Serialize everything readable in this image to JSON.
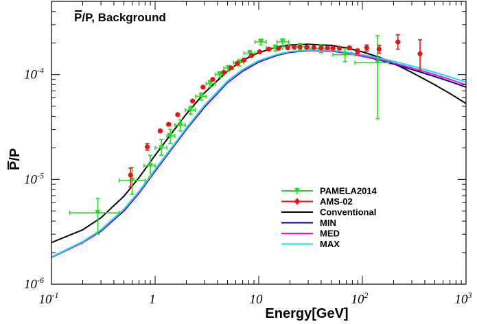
{
  "chart_data": {
    "type": "scatter",
    "title": "P/P, Background",
    "title_bar_char": "P",
    "xlabel": "Energy[GeV]",
    "ylabel": "P/P",
    "ylabel_bar_char": "P",
    "xscale": "log",
    "yscale": "log",
    "xlim": [
      0.1,
      1000
    ],
    "ylim": [
      1e-06,
      0.0005
    ],
    "x_major_ticks": [
      {
        "value": 0.1,
        "base": "10",
        "exp": "-1"
      },
      {
        "value": 1,
        "base": "1",
        "exp": ""
      },
      {
        "value": 10,
        "base": "10",
        "exp": ""
      },
      {
        "value": 100,
        "base": "10",
        "exp": "2"
      },
      {
        "value": 1000,
        "base": "10",
        "exp": "3"
      }
    ],
    "y_major_ticks": [
      {
        "value": 1e-06,
        "base": "10",
        "exp": "-6"
      },
      {
        "value": 1e-05,
        "base": "10",
        "exp": "-5"
      },
      {
        "value": 0.0001,
        "base": "10",
        "exp": "-4"
      }
    ],
    "grid": false,
    "legend_position": "lower-right",
    "series": [
      {
        "name": "PAMELA2014",
        "kind": "points",
        "marker": "triangle-down",
        "color": "#22dd22",
        "points": [
          {
            "x": 0.28,
            "y": 4.8e-06,
            "xerr": [
              0.15,
              0.45
            ],
            "yerr": [
              3e-06,
              6.6e-06
            ]
          },
          {
            "x": 0.6,
            "y": 9.8e-06,
            "xerr": [
              0.45,
              0.8
            ],
            "yerr": [
              7.2e-06,
              1.3e-05
            ]
          },
          {
            "x": 0.9,
            "y": 1.35e-05,
            "xerr": [
              0.78,
              1.0
            ],
            "yerr": [
              1.05e-05,
              1.7e-05
            ]
          },
          {
            "x": 1.15,
            "y": 2e-05,
            "xerr": [
              1.0,
              1.3
            ],
            "yerr": [
              1.7e-05,
              2.4e-05
            ]
          },
          {
            "x": 1.4,
            "y": 2.6e-05,
            "xerr": [
              1.3,
              1.55
            ],
            "yerr": [
              2.2e-05,
              3e-05
            ]
          },
          {
            "x": 1.75,
            "y": 3.3e-05,
            "xerr": [
              1.55,
              1.95
            ],
            "yerr": [
              2.9e-05,
              3.7e-05
            ]
          },
          {
            "x": 2.2,
            "y": 4.6e-05,
            "xerr": [
              1.95,
              2.45
            ],
            "yerr": [
              4.2e-05,
              5e-05
            ]
          },
          {
            "x": 2.8,
            "y": 6.2e-05,
            "xerr": [
              2.45,
              3.1
            ],
            "yerr": [
              5.7e-05,
              6.7e-05
            ]
          },
          {
            "x": 3.4,
            "y": 8.2e-05,
            "xerr": [
              3.1,
              3.8
            ],
            "yerr": [
              7.6e-05,
              8.8e-05
            ]
          },
          {
            "x": 4.2,
            "y": 0.0001,
            "xerr": [
              3.8,
              4.6
            ],
            "yerr": [
              9.4e-05,
              0.000107
            ]
          },
          {
            "x": 5.1,
            "y": 0.000115,
            "xerr": [
              4.6,
              5.7
            ],
            "yerr": [
              0.000108,
              0.000122
            ]
          },
          {
            "x": 6.5,
            "y": 0.00013,
            "xerr": [
              5.7,
              7.2
            ],
            "yerr": [
              0.000121,
              0.000139
            ]
          },
          {
            "x": 8.2,
            "y": 0.00016,
            "xerr": [
              7.2,
              9.2
            ],
            "yerr": [
              0.00015,
              0.00017
            ]
          },
          {
            "x": 10.5,
            "y": 0.000205,
            "xerr": [
              9.2,
              11.8
            ],
            "yerr": [
              0.000192,
              0.000218
            ]
          },
          {
            "x": 14.5,
            "y": 0.00018,
            "xerr": [
              11.8,
              17
            ],
            "yerr": [
              0.000168,
              0.000192
            ]
          },
          {
            "x": 17,
            "y": 0.000205,
            "xerr": [
              15,
              19.5
            ],
            "yerr": [
              0.00019,
              0.00022
            ]
          },
          {
            "x": 25,
            "y": 0.000185,
            "xerr": [
              19.5,
              31
            ],
            "yerr": [
              0.000172,
              0.000198
            ]
          },
          {
            "x": 40,
            "y": 0.000178,
            "xerr": [
              31,
              52
            ],
            "yerr": [
              0.000162,
              0.000194
            ]
          },
          {
            "x": 68,
            "y": 0.000155,
            "xerr": [
              52,
              85
            ],
            "yerr": [
              0.000133,
              0.000177
            ]
          },
          {
            "x": 140,
            "y": 0.00013,
            "xerr": [
              85,
              180
            ],
            "yerr": [
              3.8e-05,
              0.000235
            ]
          }
        ]
      },
      {
        "name": "AMS-02",
        "kind": "points",
        "marker": "circle",
        "color": "#ee1111",
        "points": [
          {
            "x": 0.58,
            "y": 1.1e-05,
            "xerr": [
              0.55,
              0.61
            ],
            "yerr": [
              8.5e-06,
              1.28e-05
            ]
          },
          {
            "x": 0.84,
            "y": 2.05e-05,
            "xerr": [
              0.8,
              0.88
            ],
            "yerr": [
              1.9e-05,
              2.2e-05
            ]
          },
          {
            "x": 1.12,
            "y": 2.9e-05,
            "xerr": [
              1.08,
              1.16
            ],
            "yerr": [
              2.8e-05,
              3e-05
            ]
          },
          {
            "x": 1.35,
            "y": 3.35e-05,
            "xerr": [
              1.31,
              1.39
            ],
            "yerr": [
              3.25e-05,
              3.45e-05
            ]
          },
          {
            "x": 1.65,
            "y": 4.15e-05,
            "xerr": [
              1.6,
              1.7
            ],
            "yerr": [
              4.05e-05,
              4.25e-05
            ]
          },
          {
            "x": 2.3,
            "y": 5.6e-05,
            "xerr": [
              2.2,
              2.4
            ],
            "yerr": [
              5.5e-05,
              5.7e-05
            ]
          },
          {
            "x": 2.9,
            "y": 7.6e-05,
            "xerr": [
              2.8,
              3.0
            ],
            "yerr": [
              7.5e-05,
              7.7e-05
            ]
          },
          {
            "x": 3.6,
            "y": 9e-05,
            "xerr": [
              3.5,
              3.7
            ],
            "yerr": [
              8.9e-05,
              9.1e-05
            ]
          },
          {
            "x": 4.6,
            "y": 0.000105,
            "xerr": [
              4.45,
              4.75
            ],
            "yerr": [
              0.000104,
              0.000106
            ]
          },
          {
            "x": 5.4,
            "y": 0.000116,
            "xerr": [
              5.25,
              5.55
            ],
            "yerr": [
              0.000115,
              0.000117
            ]
          },
          {
            "x": 6.2,
            "y": 0.000128,
            "xerr": [
              6.05,
              6.35
            ],
            "yerr": [
              0.000127,
              0.000129
            ]
          },
          {
            "x": 7.2,
            "y": 0.000138,
            "xerr": [
              7.0,
              7.4
            ],
            "yerr": [
              0.000137,
              0.000139
            ]
          },
          {
            "x": 8.5,
            "y": 0.000152,
            "xerr": [
              8.3,
              8.7
            ],
            "yerr": [
              0.000151,
              0.000153
            ]
          },
          {
            "x": 10.2,
            "y": 0.000165,
            "xerr": [
              10.0,
              10.4
            ],
            "yerr": [
              0.000163,
              0.000167
            ]
          },
          {
            "x": 12.5,
            "y": 0.000175,
            "xerr": [
              12.2,
              12.8
            ],
            "yerr": [
              0.000173,
              0.000177
            ]
          },
          {
            "x": 15.5,
            "y": 0.000178,
            "xerr": [
              15.1,
              15.9
            ],
            "yerr": [
              0.000176,
              0.00018
            ]
          },
          {
            "x": 19,
            "y": 0.00018,
            "xerr": [
              18.5,
              19.5
            ],
            "yerr": [
              0.000178,
              0.000182
            ]
          },
          {
            "x": 22,
            "y": 0.000182,
            "xerr": [
              21.5,
              22.5
            ],
            "yerr": [
              0.00018,
              0.000184
            ]
          },
          {
            "x": 25,
            "y": 0.000183,
            "xerr": [
              24.4,
              25.6
            ],
            "yerr": [
              0.000181,
              0.000185
            ]
          },
          {
            "x": 29,
            "y": 0.000182,
            "xerr": [
              28.3,
              29.7
            ],
            "yerr": [
              0.00018,
              0.000184
            ]
          },
          {
            "x": 34,
            "y": 0.000182,
            "xerr": [
              33.2,
              34.8
            ],
            "yerr": [
              0.00018,
              0.000184
            ]
          },
          {
            "x": 40,
            "y": 0.00018,
            "xerr": [
              39,
              41
            ],
            "yerr": [
              0.000178,
              0.000182
            ]
          },
          {
            "x": 46,
            "y": 0.00018,
            "xerr": [
              44.8,
              47.2
            ],
            "yerr": [
              0.000178,
              0.000182
            ]
          },
          {
            "x": 52,
            "y": 0.000179,
            "xerr": [
              50.5,
              53.5
            ],
            "yerr": [
              0.000177,
              0.000181
            ]
          },
          {
            "x": 60,
            "y": 0.000179,
            "xerr": [
              58.4,
              61.6
            ],
            "yerr": [
              0.000177,
              0.000181
            ]
          },
          {
            "x": 75,
            "y": 0.00018,
            "xerr": [
              72.5,
              77.5
            ],
            "yerr": [
              0.000174,
              0.000186
            ]
          },
          {
            "x": 90,
            "y": 0.000167,
            "xerr": [
              87,
              93
            ],
            "yerr": [
              0.000158,
              0.000176
            ]
          },
          {
            "x": 110,
            "y": 0.00018,
            "xerr": [
              106,
              114
            ],
            "yerr": [
              0.000168,
              0.000192
            ]
          },
          {
            "x": 145,
            "y": 0.000175,
            "xerr": [
              140,
              150
            ],
            "yerr": [
              0.00016,
              0.00019
            ]
          },
          {
            "x": 220,
            "y": 0.000205,
            "xerr": [
              212,
              228
            ],
            "yerr": [
              0.000175,
              0.00024
            ]
          },
          {
            "x": 360,
            "y": 0.000158,
            "xerr": [
              348,
              372
            ],
            "yerr": [
              0.00011,
              0.000215
            ]
          }
        ]
      },
      {
        "name": "Conventional",
        "kind": "line",
        "color": "#000000",
        "x": [
          0.1,
          0.2,
          0.3,
          0.5,
          0.7,
          1,
          1.5,
          2,
          3,
          5,
          7,
          10,
          15,
          20,
          30,
          50,
          70,
          100,
          150,
          200,
          300,
          500,
          700,
          1000
        ],
        "y": [
          2.5e-06,
          3.3e-06,
          4.3e-06,
          6.9e-06,
          1.04e-05,
          1.7e-05,
          2.9e-05,
          4.2e-05,
          6.7e-05,
          0.000108,
          0.000137,
          0.000162,
          0.000184,
          0.000192,
          0.000195,
          0.00019,
          0.00018,
          0.000165,
          0.000145,
          0.000128,
          0.000105,
          8e-05,
          6.6e-05,
          5.3e-05
        ]
      },
      {
        "name": "MIN",
        "kind": "line",
        "color": "#00008b",
        "x": [
          0.1,
          0.2,
          0.3,
          0.5,
          0.7,
          1,
          1.5,
          2,
          3,
          5,
          7,
          10,
          15,
          20,
          30,
          50,
          70,
          100,
          150,
          200,
          300,
          500,
          700,
          1000
        ],
        "y": [
          1.8e-06,
          2.5e-06,
          3.2e-06,
          5e-06,
          7.4e-06,
          1.2e-05,
          2.05e-05,
          3e-05,
          4.9e-05,
          8.4e-05,
          0.000108,
          0.000132,
          0.000153,
          0.000163,
          0.00017,
          0.000168,
          0.00016,
          0.00015,
          0.000137,
          0.000126,
          0.000112,
          9.6e-05,
          8.6e-05,
          7.6e-05
        ]
      },
      {
        "name": "MED",
        "kind": "line",
        "color": "#ff00ff",
        "x": [
          0.1,
          0.2,
          0.3,
          0.5,
          0.7,
          1,
          1.5,
          2,
          3,
          5,
          7,
          10,
          15,
          20,
          30,
          50,
          70,
          100,
          150,
          200,
          300,
          500,
          700,
          1000
        ],
        "y": [
          1.8e-06,
          2.5e-06,
          3.25e-06,
          5.1e-06,
          7.5e-06,
          1.22e-05,
          2.08e-05,
          3.05e-05,
          5e-05,
          8.5e-05,
          0.00011,
          0.000134,
          0.000155,
          0.000165,
          0.000171,
          0.000169,
          0.000161,
          0.000151,
          0.000139,
          0.000129,
          0.000116,
          0.0001,
          9e-05,
          8e-05
        ]
      },
      {
        "name": "MAX",
        "kind": "line",
        "color": "#00e5ee",
        "x": [
          0.1,
          0.2,
          0.3,
          0.5,
          0.7,
          1,
          1.5,
          2,
          3,
          5,
          7,
          10,
          15,
          20,
          30,
          50,
          70,
          100,
          150,
          200,
          300,
          500,
          700,
          1000
        ],
        "y": [
          1.82e-06,
          2.55e-06,
          3.3e-06,
          5.2e-06,
          7.7e-06,
          1.25e-05,
          2.12e-05,
          3.1e-05,
          5.1e-05,
          8.7e-05,
          0.000112,
          0.000136,
          0.000156,
          0.000166,
          0.000172,
          0.000171,
          0.000164,
          0.000155,
          0.000143,
          0.000134,
          0.000121,
          0.000105,
          9.5e-05,
          8.5e-05
        ]
      }
    ]
  }
}
